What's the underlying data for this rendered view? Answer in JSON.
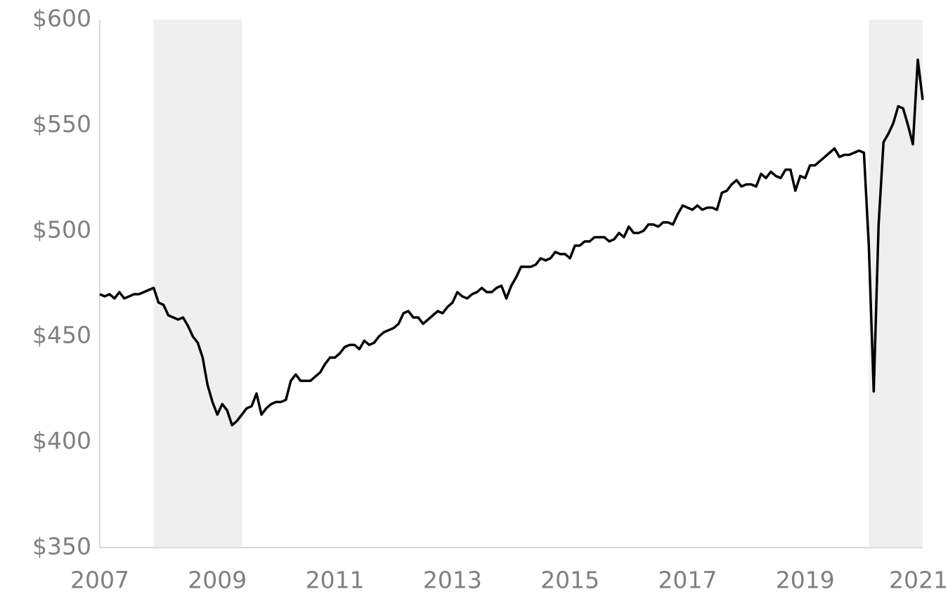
{
  "chart_data": {
    "type": "line",
    "color": "#000000",
    "shade_color": "#efefef",
    "shaded_periods": [
      [
        "2007-12",
        "2009-06"
      ],
      [
        "2020-02",
        "2021-01"
      ]
    ],
    "x": [
      "2007-01",
      "2007-02",
      "2007-03",
      "2007-04",
      "2007-05",
      "2007-06",
      "2007-07",
      "2007-08",
      "2007-09",
      "2007-10",
      "2007-11",
      "2007-12",
      "2008-01",
      "2008-02",
      "2008-03",
      "2008-04",
      "2008-05",
      "2008-06",
      "2008-07",
      "2008-08",
      "2008-09",
      "2008-10",
      "2008-11",
      "2008-12",
      "2009-01",
      "2009-02",
      "2009-03",
      "2009-04",
      "2009-05",
      "2009-06",
      "2009-07",
      "2009-08",
      "2009-09",
      "2009-10",
      "2009-11",
      "2009-12",
      "2010-01",
      "2010-02",
      "2010-03",
      "2010-04",
      "2010-05",
      "2010-06",
      "2010-07",
      "2010-08",
      "2010-09",
      "2010-10",
      "2010-11",
      "2010-12",
      "2011-01",
      "2011-02",
      "2011-03",
      "2011-04",
      "2011-05",
      "2011-06",
      "2011-07",
      "2011-08",
      "2011-09",
      "2011-10",
      "2011-11",
      "2011-12",
      "2012-01",
      "2012-02",
      "2012-03",
      "2012-04",
      "2012-05",
      "2012-06",
      "2012-07",
      "2012-08",
      "2012-09",
      "2012-10",
      "2012-11",
      "2012-12",
      "2013-01",
      "2013-02",
      "2013-03",
      "2013-04",
      "2013-05",
      "2013-06",
      "2013-07",
      "2013-08",
      "2013-09",
      "2013-10",
      "2013-11",
      "2013-12",
      "2014-01",
      "2014-02",
      "2014-03",
      "2014-04",
      "2014-05",
      "2014-06",
      "2014-07",
      "2014-08",
      "2014-09",
      "2014-10",
      "2014-11",
      "2014-12",
      "2015-01",
      "2015-02",
      "2015-03",
      "2015-04",
      "2015-05",
      "2015-06",
      "2015-07",
      "2015-08",
      "2015-09",
      "2015-10",
      "2015-11",
      "2015-12",
      "2016-01",
      "2016-02",
      "2016-03",
      "2016-04",
      "2016-05",
      "2016-06",
      "2016-07",
      "2016-08",
      "2016-09",
      "2016-10",
      "2016-11",
      "2016-12",
      "2017-01",
      "2017-02",
      "2017-03",
      "2017-04",
      "2017-05",
      "2017-06",
      "2017-07",
      "2017-08",
      "2017-09",
      "2017-10",
      "2017-11",
      "2017-12",
      "2018-01",
      "2018-02",
      "2018-03",
      "2018-04",
      "2018-05",
      "2018-06",
      "2018-07",
      "2018-08",
      "2018-09",
      "2018-10",
      "2018-11",
      "2018-12",
      "2019-01",
      "2019-02",
      "2019-03",
      "2019-04",
      "2019-05",
      "2019-06",
      "2019-07",
      "2019-08",
      "2019-09",
      "2019-10",
      "2019-11",
      "2019-12",
      "2020-01",
      "2020-02",
      "2020-03",
      "2020-04",
      "2020-05",
      "2020-06",
      "2020-07",
      "2020-08",
      "2020-09",
      "2020-10",
      "2020-11",
      "2020-12",
      "2021-01"
    ],
    "values": [
      470,
      469,
      470,
      468,
      471,
      468,
      469,
      470,
      470,
      471,
      472,
      473,
      466,
      465,
      460,
      459,
      458,
      459,
      455,
      450,
      447,
      440,
      427,
      419,
      413,
      418,
      415,
      408,
      410,
      413,
      416,
      417,
      423,
      413,
      416,
      418,
      419,
      419,
      420,
      429,
      432,
      429,
      429,
      429,
      431,
      433,
      437,
      440,
      440,
      442,
      445,
      446,
      446,
      444,
      448,
      446,
      447,
      450,
      452,
      453,
      454,
      456,
      461,
      462,
      459,
      459,
      456,
      458,
      460,
      462,
      461,
      464,
      466,
      471,
      469,
      468,
      470,
      471,
      473,
      471,
      471,
      473,
      474,
      468,
      474,
      478,
      483,
      483,
      483,
      484,
      487,
      486,
      487,
      490,
      489,
      489,
      487,
      493,
      493,
      495,
      495,
      497,
      497,
      497,
      495,
      496,
      499,
      497,
      502,
      499,
      499,
      500,
      503,
      503,
      502,
      504,
      504,
      503,
      508,
      512,
      511,
      510,
      512,
      510,
      511,
      511,
      510,
      518,
      519,
      522,
      524,
      521,
      522,
      522,
      521,
      527,
      525,
      528,
      526,
      525,
      529,
      529,
      519,
      526,
      525,
      531,
      531,
      533,
      535,
      537,
      539,
      535,
      536,
      536,
      537,
      538,
      537,
      493,
      424,
      503,
      542,
      546,
      551,
      559,
      558,
      550,
      541,
      581,
      562
    ],
    "xlim": [
      2007,
      2021
    ],
    "xticks": [
      2007,
      2009,
      2011,
      2013,
      2015,
      2017,
      2019,
      2021
    ],
    "ylim": [
      350,
      600
    ],
    "yticks": [
      {
        "value": 350,
        "label": "$350"
      },
      {
        "value": 400,
        "label": "$400"
      },
      {
        "value": 450,
        "label": "$450"
      },
      {
        "value": 500,
        "label": "$500"
      },
      {
        "value": 550,
        "label": "$550"
      },
      {
        "value": 600,
        "label": "$600"
      }
    ]
  }
}
